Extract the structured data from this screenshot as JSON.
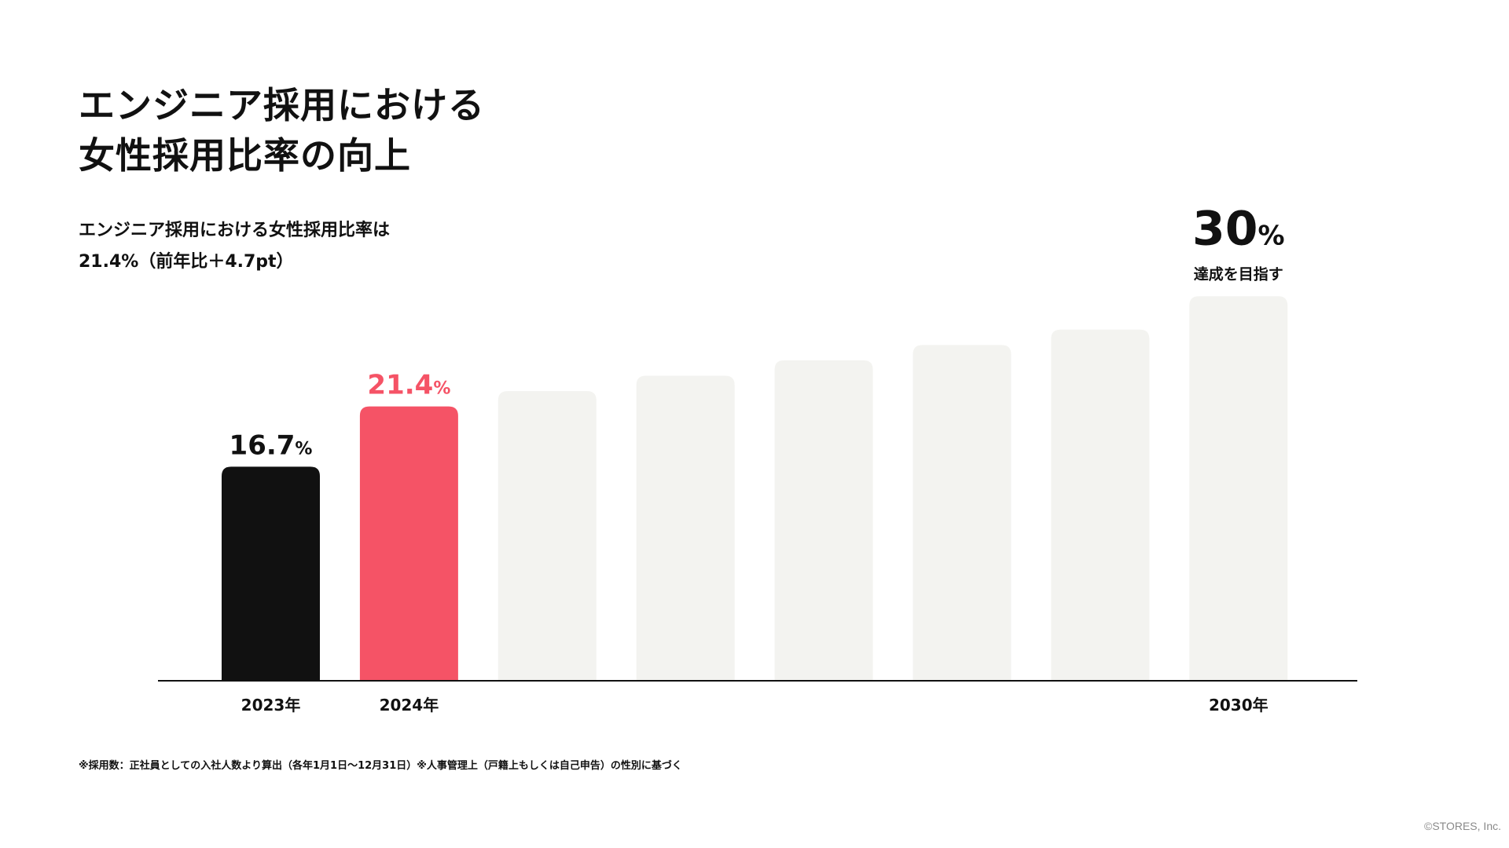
{
  "title": {
    "line1": "エンジニア採用における",
    "line2": "女性採用比率の向上"
  },
  "subtitle": {
    "line1": "エンジニア採用における女性採用比率は",
    "line2": "21.4%（前年比＋4.7pt）"
  },
  "chart_data": {
    "type": "bar",
    "title": "エンジニア採用における女性採用比率の向上",
    "categories": [
      "2023年",
      "2024年",
      "",
      "",
      "",
      "",
      "",
      "2030年"
    ],
    "values": [
      16.7,
      21.4,
      22.6,
      23.8,
      25.0,
      26.2,
      27.4,
      30.0
    ],
    "value_labels": [
      {
        "number": "16.7",
        "unit": "%"
      },
      {
        "number": "21.4",
        "unit": "%"
      },
      null,
      null,
      null,
      null,
      null,
      {
        "number": "30",
        "unit": "%"
      }
    ],
    "annotation": "達成を目指す",
    "ylim": [
      0,
      34
    ],
    "grid": false,
    "colors": [
      "#111111",
      "#f55366",
      "#f3f3f0",
      "#f3f3f0",
      "#f3f3f0",
      "#f3f3f0",
      "#f3f3f0",
      "#f3f3f0"
    ],
    "label_colors": [
      "#111111",
      "#f55366",
      "#111111",
      "#111111",
      "#111111",
      "#111111",
      "#111111",
      "#111111"
    ]
  },
  "footnote": "※採用数：正社員としての入社人数より算出（各年1月1日〜12月31日）※人事管理上（戸籍上もしくは自己申告）の性別に基づく",
  "copyright": "©STORES, Inc."
}
